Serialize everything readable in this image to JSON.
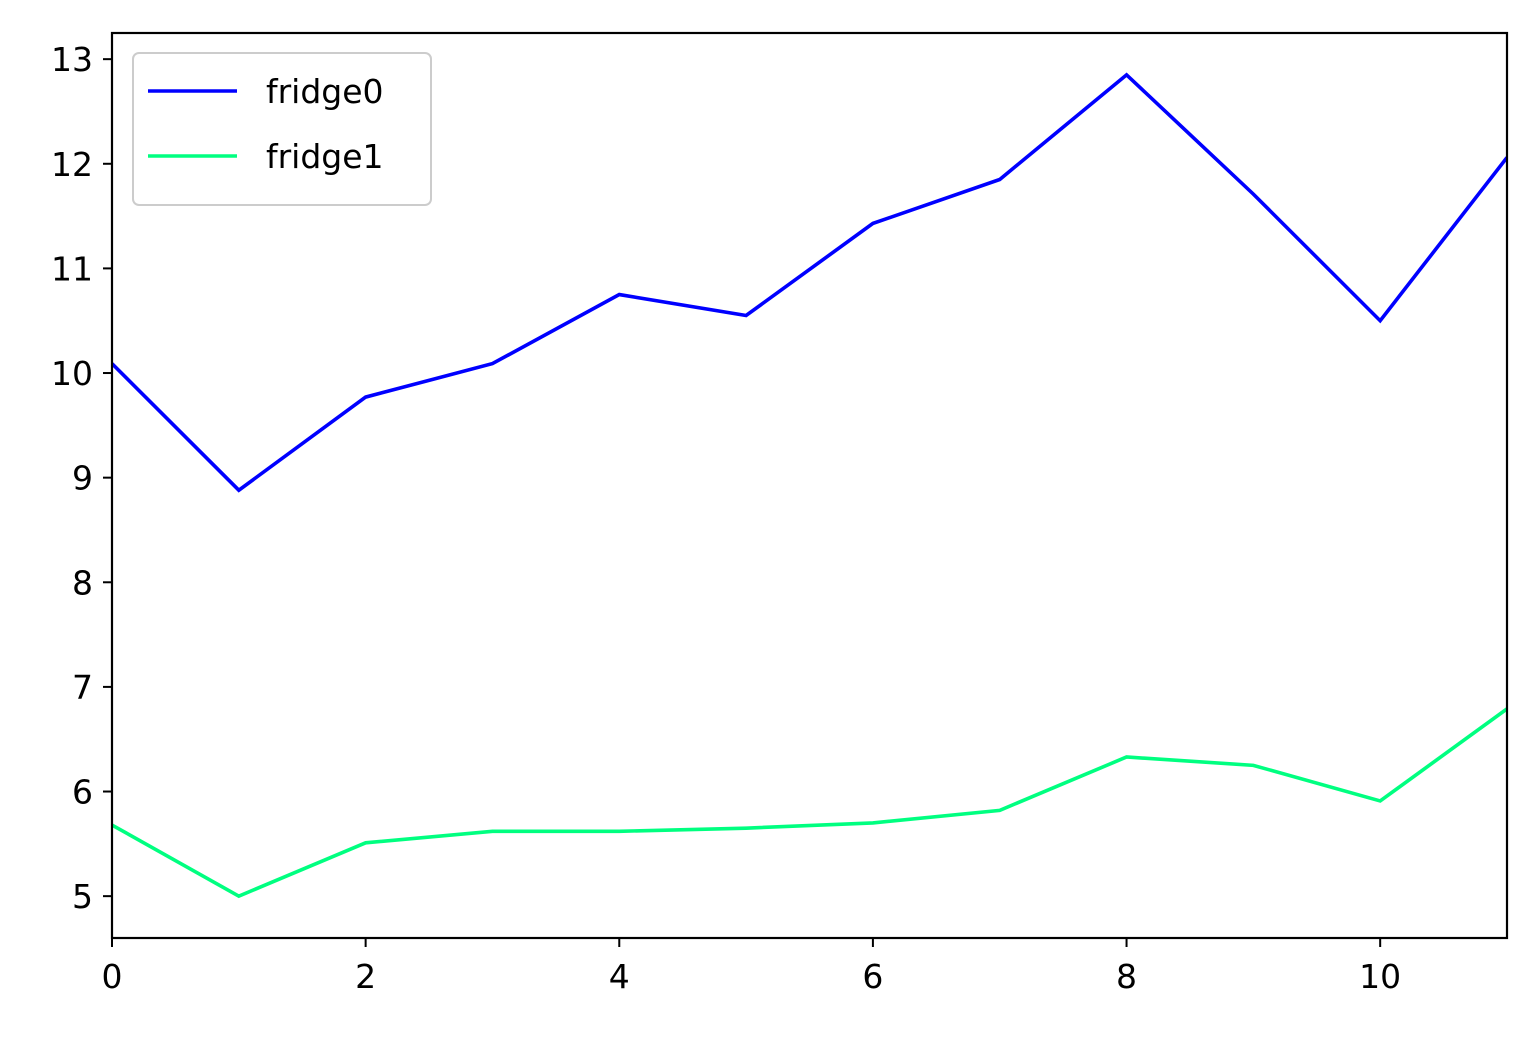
{
  "chart_data": {
    "type": "line",
    "title": "",
    "xlabel": "",
    "ylabel": "",
    "xlim": [
      0,
      11
    ],
    "ylim": [
      4.6,
      13.25
    ],
    "xticks": [
      0,
      2,
      4,
      6,
      8,
      10
    ],
    "yticks": [
      5,
      6,
      7,
      8,
      9,
      10,
      11,
      12,
      13
    ],
    "grid": false,
    "legend_position": "upper-left",
    "x": [
      0,
      1,
      2,
      3,
      4,
      5,
      6,
      7,
      8,
      9,
      10,
      11
    ],
    "series": [
      {
        "name": "fridge0",
        "color": "#0000ff",
        "values": [
          10.09,
          8.88,
          9.77,
          10.09,
          10.75,
          10.55,
          11.43,
          11.85,
          12.85,
          11.71,
          10.5,
          12.06
        ]
      },
      {
        "name": "fridge1",
        "color": "#00ff80",
        "values": [
          5.68,
          5.0,
          5.51,
          5.62,
          5.62,
          5.65,
          5.7,
          5.82,
          6.33,
          6.25,
          5.91,
          6.79
        ]
      }
    ]
  }
}
